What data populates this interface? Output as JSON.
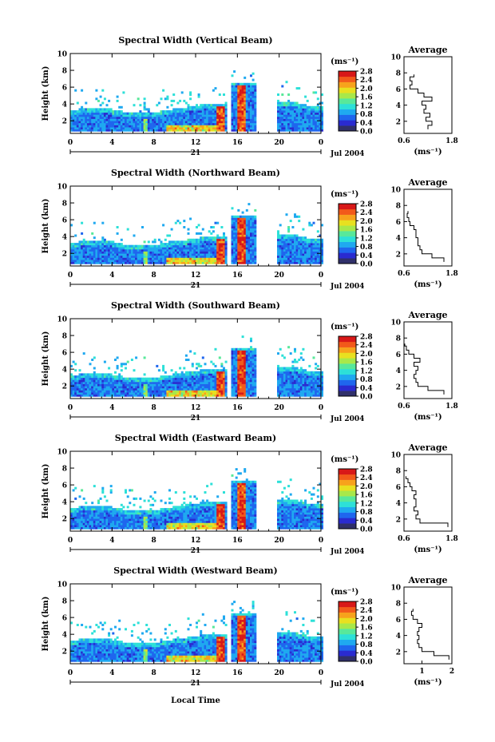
{
  "figure": {
    "x_label": "Local Time",
    "day_label": "21",
    "date_label": "Jul 2004",
    "y_label": "Height (km)",
    "colorbar_unit": "(ms⁻¹)",
    "avg_title": "Average",
    "avg_xlabel": "(ms⁻¹)"
  },
  "colorbar": {
    "ticks": [
      "0.0",
      "0.4",
      "0.8",
      "1.2",
      "1.6",
      "2.0",
      "2.4",
      "2.8"
    ],
    "colors": [
      "#30306a",
      "#2a2bd0",
      "#1f66ee",
      "#1fa9f0",
      "#2de0d8",
      "#58e89a",
      "#a8e84a",
      "#e8e020",
      "#f7a21c",
      "#f25a1a",
      "#d81818"
    ]
  },
  "chart_data": [
    {
      "type": "heatmap",
      "title": "Spectral Width (Vertical Beam)",
      "x_ticks": [
        "0",
        "4",
        "8",
        "12",
        "16",
        "20",
        "0"
      ],
      "xlim": [
        0,
        24
      ],
      "y_ticks": [
        "2",
        "4",
        "6",
        "8",
        "10"
      ],
      "ylim": [
        0.5,
        10
      ],
      "color_range": [
        0.0,
        2.8
      ],
      "average_profile": {
        "x_ticks": [
          "0.6",
          "1.8"
        ],
        "xlim": [
          0.6,
          1.8
        ],
        "heights": [
          1,
          1.5,
          2,
          2.5,
          3,
          3.5,
          4,
          4.5,
          5,
          5.5,
          6,
          6.5,
          7,
          7.5
        ],
        "values": [
          1.2,
          1.3,
          1.15,
          1.25,
          1.1,
          1.15,
          1.05,
          1.3,
          1.1,
          0.95,
          0.75,
          0.8,
          0.75,
          0.85
        ]
      }
    },
    {
      "type": "heatmap",
      "title": "Spectral Width (Northward Beam)",
      "x_ticks": [
        "0",
        "4",
        "8",
        "12",
        "16",
        "20",
        "0"
      ],
      "xlim": [
        0,
        24
      ],
      "y_ticks": [
        "2",
        "4",
        "6",
        "8",
        "10"
      ],
      "ylim": [
        0.5,
        10
      ],
      "color_range": [
        0.0,
        2.8
      ],
      "average_profile": {
        "x_ticks": [
          "0.6",
          "1.8"
        ],
        "xlim": [
          0.6,
          1.8
        ],
        "heights": [
          1,
          1.5,
          2,
          2.5,
          3,
          3.5,
          4,
          4.5,
          5,
          5.5,
          6,
          6.5,
          7
        ],
        "values": [
          1.6,
          1.3,
          1.05,
          1.0,
          0.95,
          0.95,
          0.9,
          0.9,
          0.85,
          0.75,
          0.72,
          0.68,
          0.7
        ]
      }
    },
    {
      "type": "heatmap",
      "title": "Spectral Width (Southward Beam)",
      "x_ticks": [
        "0",
        "4",
        "8",
        "12",
        "16",
        "20",
        "0"
      ],
      "xlim": [
        0,
        24
      ],
      "y_ticks": [
        "2",
        "4",
        "6",
        "8",
        "10"
      ],
      "ylim": [
        0.5,
        10
      ],
      "color_range": [
        0.0,
        2.8
      ],
      "average_profile": {
        "x_ticks": [
          "0.6",
          "1.8"
        ],
        "xlim": [
          0.6,
          1.8
        ],
        "heights": [
          1,
          1.5,
          2,
          2.5,
          3,
          3.5,
          4,
          4.5,
          5,
          5.5,
          6,
          6.5,
          7
        ],
        "values": [
          1.6,
          1.2,
          0.95,
          0.9,
          0.85,
          0.9,
          0.95,
          0.85,
          1.0,
          0.85,
          0.72,
          0.66,
          0.62
        ]
      }
    },
    {
      "type": "heatmap",
      "title": "Spectral Width (Eastward Beam)",
      "x_ticks": [
        "0",
        "4",
        "8",
        "12",
        "16",
        "20",
        "0"
      ],
      "xlim": [
        0,
        24
      ],
      "y_ticks": [
        "2",
        "4",
        "6",
        "8",
        "10"
      ],
      "ylim": [
        0.5,
        10
      ],
      "color_range": [
        0.0,
        2.8
      ],
      "average_profile": {
        "x_ticks": [
          "0.6",
          "1.8"
        ],
        "xlim": [
          0.6,
          1.8
        ],
        "heights": [
          1,
          1.5,
          2,
          2.5,
          3,
          3.5,
          4,
          4.5,
          5,
          5.5,
          6,
          6.5,
          7
        ],
        "values": [
          1.7,
          1.0,
          0.9,
          0.95,
          0.85,
          0.9,
          0.9,
          0.85,
          0.9,
          0.8,
          0.75,
          0.7,
          0.65
        ]
      }
    },
    {
      "type": "heatmap",
      "title": "Spectral Width (Westward Beam)",
      "x_ticks": [
        "0",
        "4",
        "8",
        "12",
        "16",
        "20",
        "0"
      ],
      "xlim": [
        0,
        24
      ],
      "y_ticks": [
        "2",
        "4",
        "6",
        "8",
        "10"
      ],
      "ylim": [
        0.5,
        10
      ],
      "color_range": [
        0.0,
        2.8
      ],
      "average_profile": {
        "x_ticks": [
          "1",
          "2"
        ],
        "xlim": [
          0.4,
          2.0
        ],
        "heights": [
          1,
          1.5,
          2,
          2.5,
          3,
          3.5,
          4,
          4.5,
          5,
          5.5,
          6,
          6.5,
          7
        ],
        "values": [
          1.9,
          1.4,
          1.0,
          0.9,
          0.85,
          0.9,
          0.85,
          0.9,
          1.0,
          0.85,
          0.7,
          0.65,
          0.7
        ]
      }
    }
  ]
}
